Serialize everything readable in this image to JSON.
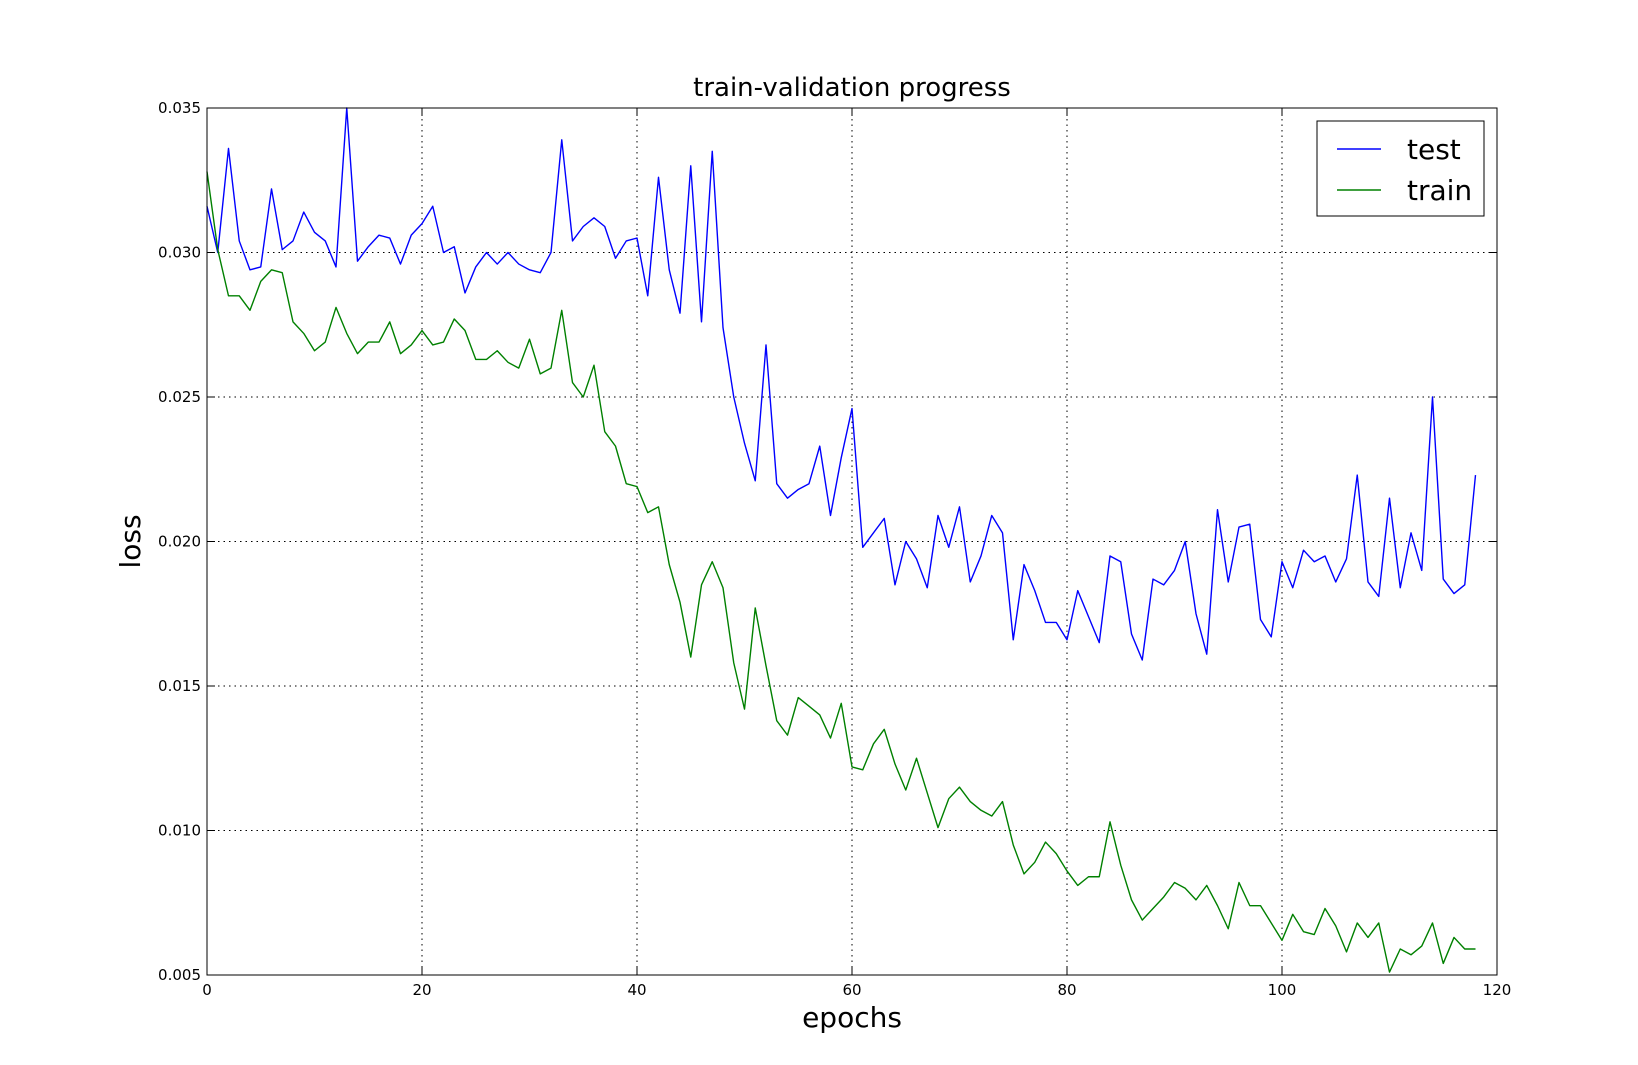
{
  "chart_data": {
    "type": "line",
    "title": "train-validation progress",
    "xlabel": "epochs",
    "ylabel": "loss",
    "xlim": [
      0,
      120
    ],
    "ylim": [
      0.005,
      0.035
    ],
    "xticks": [
      0,
      20,
      40,
      60,
      80,
      100,
      120
    ],
    "yticks": [
      0.005,
      0.01,
      0.015,
      0.02,
      0.025,
      0.03,
      0.035
    ],
    "xtick_labels": [
      "0",
      "20",
      "40",
      "60",
      "80",
      "100",
      "120"
    ],
    "ytick_labels": [
      "0.005",
      "0.010",
      "0.015",
      "0.020",
      "0.025",
      "0.030",
      "0.035"
    ],
    "grid": true,
    "legend_position": "top-right",
    "x": [
      0,
      1,
      2,
      3,
      4,
      5,
      6,
      7,
      8,
      9,
      10,
      11,
      12,
      13,
      14,
      15,
      16,
      17,
      18,
      19,
      20,
      21,
      22,
      23,
      24,
      25,
      26,
      27,
      28,
      29,
      30,
      31,
      32,
      33,
      34,
      35,
      36,
      37,
      38,
      39,
      40,
      41,
      42,
      43,
      44,
      45,
      46,
      47,
      48,
      49,
      50,
      51,
      52,
      53,
      54,
      55,
      56,
      57,
      58,
      59,
      60,
      61,
      62,
      63,
      64,
      65,
      66,
      67,
      68,
      69,
      70,
      71,
      72,
      73,
      74,
      75,
      76,
      77,
      78,
      79,
      80,
      81,
      82,
      83,
      84,
      85,
      86,
      87,
      88,
      89,
      90,
      91,
      92,
      93,
      94,
      95,
      96,
      97,
      98,
      99,
      100,
      101,
      102,
      103,
      104,
      105,
      106,
      107,
      108,
      109,
      110,
      111,
      112,
      113,
      114,
      115,
      116,
      117,
      118
    ],
    "series": [
      {
        "name": "test",
        "color": "#0000ff",
        "values": [
          0.0316,
          0.03,
          0.0336,
          0.0304,
          0.0294,
          0.0295,
          0.0322,
          0.0301,
          0.0304,
          0.0314,
          0.0307,
          0.0304,
          0.0295,
          0.035,
          0.0297,
          0.0302,
          0.0306,
          0.0305,
          0.0296,
          0.0306,
          0.031,
          0.0316,
          0.03,
          0.0302,
          0.0286,
          0.0295,
          0.03,
          0.0296,
          0.03,
          0.0296,
          0.0294,
          0.0293,
          0.03,
          0.0339,
          0.0304,
          0.0309,
          0.0312,
          0.0309,
          0.0298,
          0.0304,
          0.0305,
          0.0285,
          0.0326,
          0.0294,
          0.0279,
          0.033,
          0.0276,
          0.0335,
          0.0274,
          0.025,
          0.0234,
          0.0221,
          0.0268,
          0.022,
          0.0215,
          0.0218,
          0.022,
          0.0233,
          0.0209,
          0.0229,
          0.0246,
          0.0198,
          0.0203,
          0.0208,
          0.0185,
          0.02,
          0.0194,
          0.0184,
          0.0209,
          0.0198,
          0.0212,
          0.0186,
          0.0195,
          0.0209,
          0.0203,
          0.0166,
          0.0192,
          0.0183,
          0.0172,
          0.0172,
          0.0166,
          0.0183,
          0.0174,
          0.0165,
          0.0195,
          0.0193,
          0.0168,
          0.0159,
          0.0187,
          0.0185,
          0.019,
          0.02,
          0.0175,
          0.0161,
          0.0211,
          0.0186,
          0.0205,
          0.0206,
          0.0173,
          0.0167,
          0.0193,
          0.0184,
          0.0197,
          0.0193,
          0.0195,
          0.0186,
          0.0194,
          0.0223,
          0.0186,
          0.0181,
          0.0215,
          0.0184,
          0.0203,
          0.019,
          0.025,
          0.0187,
          0.0182,
          0.0185,
          0.0223
        ]
      },
      {
        "name": "train",
        "color": "#008000",
        "values": [
          0.0328,
          0.0301,
          0.0285,
          0.0285,
          0.028,
          0.029,
          0.0294,
          0.0293,
          0.0276,
          0.0272,
          0.0266,
          0.0269,
          0.0281,
          0.0272,
          0.0265,
          0.0269,
          0.0269,
          0.0276,
          0.0265,
          0.0268,
          0.0273,
          0.0268,
          0.0269,
          0.0277,
          0.0273,
          0.0263,
          0.0263,
          0.0266,
          0.0262,
          0.026,
          0.027,
          0.0258,
          0.026,
          0.028,
          0.0255,
          0.025,
          0.0261,
          0.0238,
          0.0233,
          0.022,
          0.0219,
          0.021,
          0.0212,
          0.0192,
          0.0179,
          0.016,
          0.0185,
          0.0193,
          0.0184,
          0.0158,
          0.0142,
          0.0177,
          0.0157,
          0.0138,
          0.0133,
          0.0146,
          0.0143,
          0.014,
          0.0132,
          0.0144,
          0.0122,
          0.0121,
          0.013,
          0.0135,
          0.0123,
          0.0114,
          0.0125,
          0.0113,
          0.0101,
          0.0111,
          0.0115,
          0.011,
          0.0107,
          0.0105,
          0.011,
          0.0095,
          0.0085,
          0.0089,
          0.0096,
          0.0092,
          0.0086,
          0.0081,
          0.0084,
          0.0084,
          0.0103,
          0.0088,
          0.0076,
          0.0069,
          0.0073,
          0.0077,
          0.0082,
          0.008,
          0.0076,
          0.0081,
          0.0074,
          0.0066,
          0.0082,
          0.0074,
          0.0074,
          0.0068,
          0.0062,
          0.0071,
          0.0065,
          0.0064,
          0.0073,
          0.0067,
          0.0058,
          0.0068,
          0.0063,
          0.0068,
          0.0051,
          0.0059,
          0.0057,
          0.006,
          0.0068,
          0.0054,
          0.0063,
          0.0059,
          0.0059
        ]
      }
    ]
  }
}
